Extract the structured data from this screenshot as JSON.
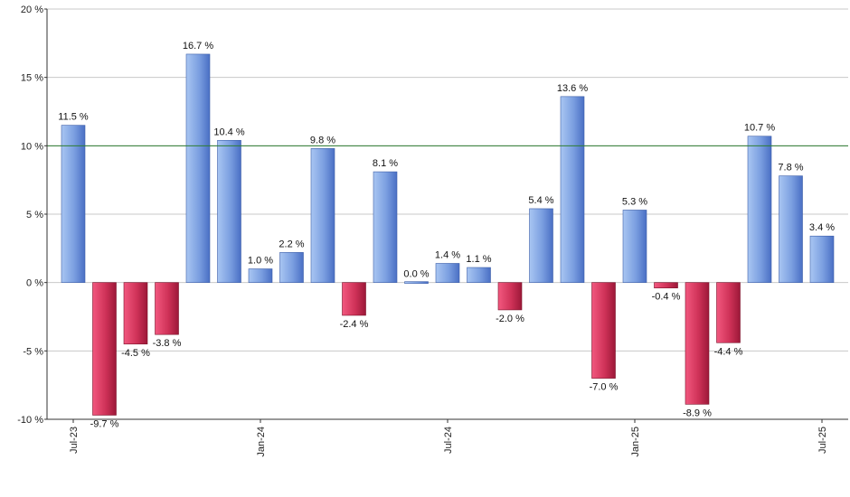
{
  "chart_data": {
    "type": "bar",
    "title": "",
    "xlabel": "",
    "ylabel": "",
    "ylim": [
      -10,
      20
    ],
    "y_ticks": [
      {
        "value": 20,
        "label": "20 %"
      },
      {
        "value": 15,
        "label": "15 %"
      },
      {
        "value": 10,
        "label": "10 %"
      },
      {
        "value": 5,
        "label": "5 %"
      },
      {
        "value": 0,
        "label": "0 %"
      },
      {
        "value": -5,
        "label": "-5 %"
      },
      {
        "value": -10,
        "label": "-10 %"
      }
    ],
    "reference_line": {
      "value": 10,
      "color": "#2e7d32"
    },
    "categories": [
      "Jul-23",
      "Aug-23",
      "Sep-23",
      "Oct-23",
      "Nov-23",
      "Dec-23",
      "Jan-24",
      "Feb-24",
      "Mar-24",
      "Apr-24",
      "May-24",
      "Jun-24",
      "Jul-24",
      "Aug-24",
      "Sep-24",
      "Oct-24",
      "Nov-24",
      "Dec-24",
      "Jan-25",
      "Feb-25",
      "Mar-25",
      "Apr-25",
      "May-25",
      "Jun-25",
      "Jul-25"
    ],
    "values": [
      11.5,
      -9.7,
      -4.5,
      -3.8,
      16.7,
      10.4,
      1.0,
      2.2,
      9.8,
      -2.4,
      8.1,
      0.0,
      1.4,
      1.1,
      -2.0,
      5.4,
      13.6,
      -7.0,
      5.3,
      -0.4,
      -8.9,
      -4.4,
      10.7,
      7.8,
      3.4
    ],
    "value_labels": [
      "11.5 %",
      "-9.7 %",
      "-4.5 %",
      "-3.8 %",
      "16.7 %",
      "10.4 %",
      "1.0 %",
      "2.2 %",
      "9.8 %",
      "-2.4 %",
      "8.1 %",
      "0.0 %",
      "1.4 %",
      "1.1 %",
      "-2.0 %",
      "5.4 %",
      "13.6 %",
      "-7.0 %",
      "5.3 %",
      "-0.4 %",
      "-8.9 %",
      "-4.4 %",
      "10.7 %",
      "7.8 %",
      "3.4 %"
    ],
    "x_tick_labels": [
      {
        "index": 0,
        "label": "Jul-23"
      },
      {
        "index": 6,
        "label": "Jan-24"
      },
      {
        "index": 12,
        "label": "Jul-24"
      },
      {
        "index": 18,
        "label": "Jan-25"
      },
      {
        "index": 24,
        "label": "Jul-25"
      }
    ],
    "colors": {
      "positive_light": "#a9c6f2",
      "positive_dark": "#4a6fc4",
      "negative_light": "#f2587f",
      "negative_dark": "#9c1838",
      "grid": "#c8c8c8",
      "axis": "#333333"
    }
  }
}
